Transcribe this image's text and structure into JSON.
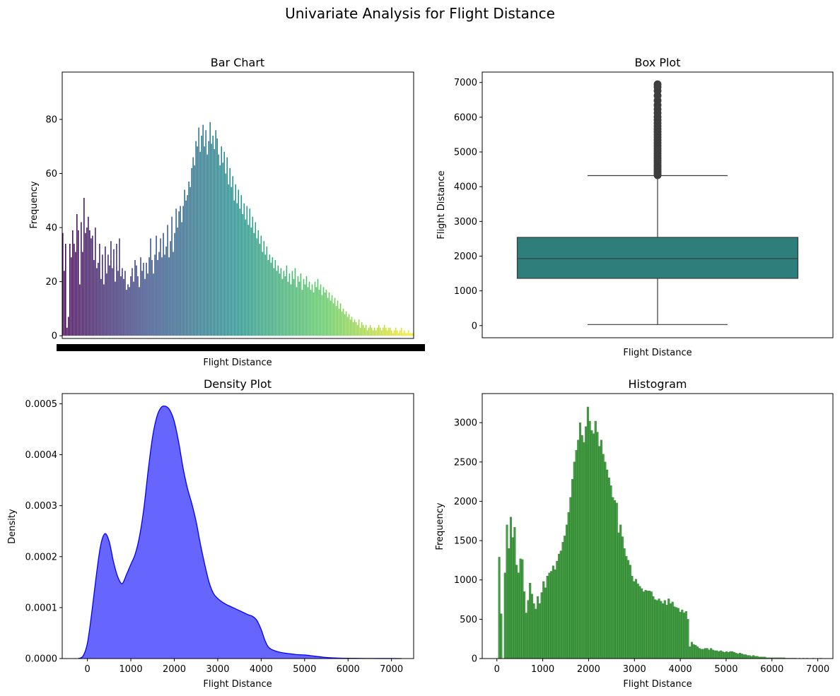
{
  "figure": {
    "title": "Univariate Analysis for Flight Distance"
  },
  "chart_data": [
    {
      "id": "bar",
      "type": "bar",
      "title": "Bar Chart",
      "xlabel": "Flight Distance",
      "ylabel": "Frequency",
      "ylim": [
        -1,
        97.5
      ],
      "yticks": [
        0,
        20,
        40,
        60,
        80
      ],
      "colormap": "viridis",
      "note_x": "one bar per distinct flight distance (x tick labels overlap into a solid band)",
      "values": [
        38,
        24,
        34,
        3,
        7,
        34,
        29,
        39,
        34,
        31,
        45,
        39,
        19,
        42,
        31,
        51,
        38,
        40,
        44,
        39,
        36,
        37,
        28,
        40,
        25,
        27,
        34,
        21,
        30,
        19,
        33,
        23,
        30,
        26,
        35,
        25,
        32,
        20,
        34,
        24,
        36,
        22,
        25,
        21,
        24,
        17,
        19,
        18,
        22,
        25,
        20,
        28,
        26,
        22,
        18,
        29,
        24,
        27,
        21,
        27,
        23,
        29,
        36,
        28,
        23,
        30,
        37,
        28,
        31,
        36,
        29,
        38,
        30,
        33,
        41,
        29,
        35,
        44,
        31,
        38,
        47,
        40,
        46,
        48,
        42,
        48,
        54,
        50,
        52,
        57,
        55,
        62,
        66,
        63,
        72,
        70,
        77,
        68,
        74,
        78,
        70,
        76,
        67,
        72,
        79,
        71,
        74,
        69,
        76,
        73,
        67,
        63,
        70,
        64,
        68,
        60,
        66,
        56,
        62,
        55,
        59,
        50,
        56,
        49,
        54,
        47,
        52,
        45,
        49,
        43,
        48,
        41,
        47,
        40,
        44,
        38,
        42,
        36,
        39,
        34,
        37,
        31,
        35,
        30,
        33,
        28,
        30,
        27,
        29,
        25,
        28,
        24,
        26,
        23,
        25,
        21,
        24,
        22,
        26,
        20,
        23,
        19,
        24,
        21,
        25,
        18,
        22,
        20,
        23,
        17,
        21,
        19,
        22,
        18,
        20,
        17,
        19,
        16,
        20,
        18,
        21,
        17,
        19,
        15,
        18,
        16,
        17,
        14,
        16,
        13,
        15,
        12,
        14,
        11,
        13,
        10,
        12,
        9,
        10,
        8,
        9,
        7,
        8,
        6,
        7,
        5,
        6,
        5,
        4,
        6,
        3,
        5,
        4,
        3,
        4,
        2,
        3,
        4,
        3,
        2,
        3,
        2,
        3,
        4,
        3,
        2,
        3,
        4,
        3,
        2,
        3,
        3,
        2,
        1,
        2,
        3,
        2,
        1,
        2,
        3,
        1,
        2,
        1,
        1,
        2,
        1,
        1,
        1
      ]
    },
    {
      "id": "box",
      "type": "box",
      "title": "Box Plot",
      "xlabel": "Flight Distance",
      "ylabel": "Flight Distance",
      "ylim": [
        -350,
        7300
      ],
      "yticks": [
        0,
        1000,
        2000,
        3000,
        4000,
        5000,
        6000,
        7000
      ],
      "color": "#2e7f7b",
      "stats": {
        "min": 30,
        "q1": 1360,
        "median": 1930,
        "q3": 2540,
        "whisker_high": 4320
      },
      "outliers": [
        4330,
        4380,
        4440,
        4500,
        4560,
        4620,
        4690,
        4750,
        4820,
        4890,
        4960,
        5030,
        5100,
        5180,
        5260,
        5340,
        5420,
        5500,
        5580,
        5660,
        5740,
        5830,
        5920,
        6010,
        6120,
        6230,
        6350,
        6480,
        6620,
        6760,
        6870,
        6950
      ]
    },
    {
      "id": "density",
      "type": "area",
      "title": "Density Plot",
      "xlabel": "Flight Distance",
      "ylabel": "Density",
      "xlim": [
        -580,
        7510
      ],
      "ylim": [
        0,
        0.00052
      ],
      "xticks": [
        0,
        1000,
        2000,
        3000,
        4000,
        5000,
        6000,
        7000
      ],
      "yticks": [
        "0.0000",
        "0.0001",
        "0.0002",
        "0.0003",
        "0.0004",
        "0.0005"
      ],
      "color": "#0000ff",
      "fill_opacity": 0.6,
      "x": [
        -210,
        -100,
        0,
        100,
        200,
        300,
        400,
        500,
        600,
        700,
        800,
        900,
        1000,
        1100,
        1200,
        1300,
        1400,
        1500,
        1600,
        1700,
        1800,
        1900,
        2000,
        2100,
        2200,
        2300,
        2400,
        2500,
        2600,
        2700,
        2800,
        2900,
        3000,
        3100,
        3200,
        3300,
        3400,
        3500,
        3600,
        3700,
        3800,
        3900,
        4000,
        4100,
        4200,
        4400,
        4600,
        4800,
        5000,
        5200,
        5400,
        5600,
        5800,
        6000,
        6400,
        6800,
        7230
      ],
      "y": [
        0.0,
        5e-06,
        3e-05,
        9e-05,
        0.00016,
        0.00022,
        0.000245,
        0.00023,
        0.00019,
        0.00016,
        0.000147,
        0.000165,
        0.000185,
        0.000205,
        0.00024,
        0.000295,
        0.00037,
        0.000435,
        0.000475,
        0.000493,
        0.000495,
        0.000487,
        0.000465,
        0.000425,
        0.000375,
        0.000335,
        0.000305,
        0.00027,
        0.000225,
        0.000185,
        0.00015,
        0.000128,
        0.000118,
        0.000111,
        0.000106,
        0.000102,
        9.8e-05,
        9.4e-05,
        9e-05,
        8.6e-05,
        8.3e-05,
        7.5e-05,
        5.7e-05,
        3.3e-05,
        2e-05,
        1.3e-05,
        1e-05,
        8e-06,
        7e-06,
        5e-06,
        3e-06,
        1.5e-06,
        8e-07,
        5e-07,
        2e-07,
        1e-07,
        0.0
      ]
    },
    {
      "id": "hist",
      "type": "bar",
      "title": "Histogram",
      "xlabel": "Flight Distance",
      "ylabel": "Frequency",
      "xlim": [
        -320,
        7330
      ],
      "ylim": [
        0,
        3370
      ],
      "xticks": [
        0,
        1000,
        2000,
        3000,
        4000,
        5000,
        6000,
        7000
      ],
      "yticks": [
        0,
        500,
        1000,
        1500,
        2000,
        2500,
        3000
      ],
      "color": "#228b22",
      "bin_start": 31,
      "bin_width": 42,
      "values": [
        1290,
        570,
        0,
        1090,
        1700,
        1400,
        1800,
        1540,
        1670,
        1190,
        1090,
        1270,
        1260,
        850,
        580,
        740,
        960,
        820,
        700,
        630,
        790,
        700,
        840,
        980,
        900,
        1050,
        1090,
        1110,
        1180,
        1130,
        1240,
        1330,
        1370,
        1480,
        1560,
        1700,
        1860,
        2050,
        2280,
        2500,
        2650,
        2780,
        3000,
        2840,
        2750,
        2950,
        3200,
        3020,
        2900,
        2860,
        3020,
        2880,
        2700,
        2780,
        2600,
        2500,
        2400,
        2300,
        2200,
        2050,
        2010,
        1980,
        1600,
        1700,
        1550,
        1400,
        1300,
        1250,
        1190,
        1050,
        980,
        1010,
        950,
        920,
        890,
        850,
        870,
        860,
        860,
        850,
        790,
        750,
        740,
        760,
        730,
        700,
        740,
        680,
        760,
        700,
        720,
        660,
        650,
        640,
        590,
        620,
        580,
        600,
        500,
        150,
        210,
        180,
        170,
        150,
        130,
        120,
        120,
        130,
        130,
        110,
        130,
        110,
        100,
        100,
        90,
        100,
        90,
        80,
        90,
        80,
        90,
        90,
        80,
        70,
        60,
        70,
        60,
        50,
        50,
        40,
        40,
        30,
        40,
        30,
        30,
        20,
        20,
        20,
        20,
        10,
        10,
        10,
        10,
        10,
        10,
        10,
        10,
        10,
        10,
        5,
        5,
        5,
        5,
        5,
        5,
        0,
        5,
        0,
        5,
        0,
        5,
        0,
        0,
        5,
        0,
        0,
        0,
        5
      ]
    }
  ]
}
